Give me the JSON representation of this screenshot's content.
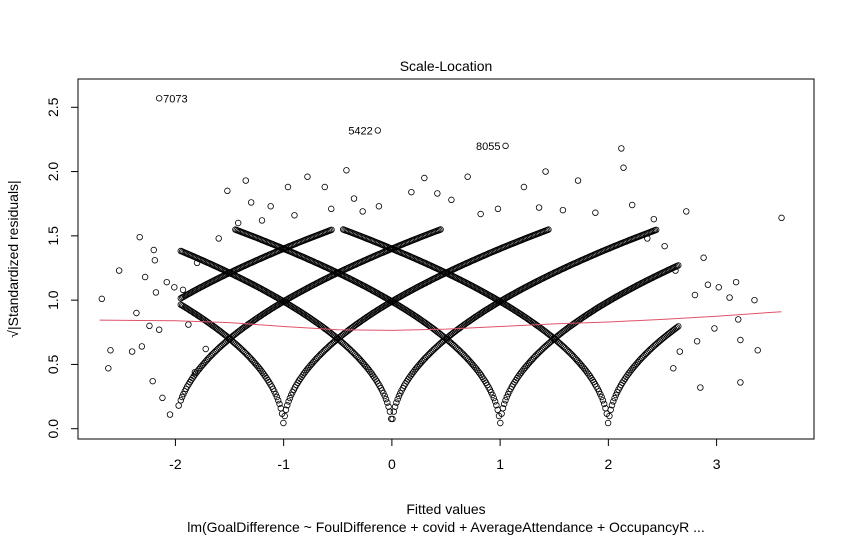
{
  "chart_data": {
    "type": "scatter",
    "title": "Scale-Location",
    "xlabel": "Fitted values",
    "ylabel": "√|Standardized residuals|",
    "subtitle": "lm(GoalDifference ~ FoulDifference + covid + AverageAttendance + OccupancyR ...",
    "xlim": [
      -2.9,
      3.9
    ],
    "ylim": [
      -0.08,
      2.72
    ],
    "xticks": [
      -2,
      -1,
      0,
      1,
      2,
      3
    ],
    "yticks": [
      0.0,
      0.5,
      1.0,
      1.5,
      2.0,
      2.5
    ],
    "xtick_labels": [
      "-2",
      "-1",
      "0",
      "1",
      "2",
      "3"
    ],
    "ytick_labels": [
      "0.0",
      "0.5",
      "1.0",
      "1.5",
      "2.0",
      "2.5"
    ],
    "grid": false,
    "point_color": "#000000",
    "smooth_color": "#DF536B",
    "labeled_points": [
      {
        "label": "7073",
        "x": -2.15,
        "y": 2.57
      },
      {
        "label": "5422",
        "x": -0.13,
        "y": 2.32
      },
      {
        "label": "8055",
        "x": 1.05,
        "y": 2.2
      }
    ],
    "lattice": {
      "residual_levels": [
        -3,
        -2,
        -1,
        0,
        1,
        2
      ],
      "note": "dense curves sqrt(|k - x|) for integer goal differences k"
    },
    "scattered_points": [
      {
        "x": -2.68,
        "y": 1.01
      },
      {
        "x": -2.62,
        "y": 0.47
      },
      {
        "x": -2.6,
        "y": 0.61
      },
      {
        "x": -2.52,
        "y": 1.23
      },
      {
        "x": -2.4,
        "y": 0.6
      },
      {
        "x": -2.36,
        "y": 0.9
      },
      {
        "x": -2.33,
        "y": 1.49
      },
      {
        "x": -2.28,
        "y": 1.18
      },
      {
        "x": -2.21,
        "y": 0.37
      },
      {
        "x": -2.2,
        "y": 1.39
      },
      {
        "x": -2.19,
        "y": 1.31
      },
      {
        "x": -2.18,
        "y": 1.06
      },
      {
        "x": -2.12,
        "y": 0.24
      },
      {
        "x": -2.08,
        "y": 1.14
      },
      {
        "x": -2.05,
        "y": 0.11
      },
      {
        "x": -2.01,
        "y": 1.1
      },
      {
        "x": -1.97,
        "y": 0.18
      },
      {
        "x": -1.93,
        "y": 1.08
      },
      {
        "x": -1.88,
        "y": 0.81
      },
      {
        "x": -1.8,
        "y": 1.29
      },
      {
        "x": -1.6,
        "y": 1.48
      },
      {
        "x": -1.52,
        "y": 1.85
      },
      {
        "x": -1.42,
        "y": 1.6
      },
      {
        "x": -1.35,
        "y": 1.93
      },
      {
        "x": -1.3,
        "y": 1.76
      },
      {
        "x": -1.2,
        "y": 1.62
      },
      {
        "x": -1.12,
        "y": 1.73
      },
      {
        "x": -0.96,
        "y": 1.88
      },
      {
        "x": -0.9,
        "y": 1.66
      },
      {
        "x": -0.78,
        "y": 1.96
      },
      {
        "x": -0.62,
        "y": 1.88
      },
      {
        "x": -0.56,
        "y": 1.71
      },
      {
        "x": -0.42,
        "y": 2.01
      },
      {
        "x": -0.35,
        "y": 1.79
      },
      {
        "x": -0.27,
        "y": 1.69
      },
      {
        "x": -0.12,
        "y": 1.73
      },
      {
        "x": 0.18,
        "y": 1.84
      },
      {
        "x": 0.3,
        "y": 1.95
      },
      {
        "x": 0.42,
        "y": 1.83
      },
      {
        "x": 0.55,
        "y": 1.78
      },
      {
        "x": 0.7,
        "y": 1.96
      },
      {
        "x": 0.82,
        "y": 1.67
      },
      {
        "x": 0.98,
        "y": 1.71
      },
      {
        "x": 1.22,
        "y": 1.88
      },
      {
        "x": 1.36,
        "y": 1.72
      },
      {
        "x": 1.42,
        "y": 2.0
      },
      {
        "x": 1.58,
        "y": 1.7
      },
      {
        "x": 1.72,
        "y": 1.93
      },
      {
        "x": 1.88,
        "y": 1.68
      },
      {
        "x": 2.12,
        "y": 2.18
      },
      {
        "x": 2.14,
        "y": 2.03
      },
      {
        "x": 2.22,
        "y": 1.74
      },
      {
        "x": 2.36,
        "y": 1.48
      },
      {
        "x": 2.42,
        "y": 1.63
      },
      {
        "x": 2.52,
        "y": 1.42
      },
      {
        "x": 2.62,
        "y": 1.23
      },
      {
        "x": 2.8,
        "y": 1.04
      },
      {
        "x": 2.82,
        "y": 0.68
      },
      {
        "x": 2.85,
        "y": 0.32
      },
      {
        "x": 2.98,
        "y": 0.78
      },
      {
        "x": 3.02,
        "y": 1.1
      },
      {
        "x": 2.72,
        "y": 1.69
      },
      {
        "x": 3.18,
        "y": 1.14
      },
      {
        "x": 3.2,
        "y": 0.85
      },
      {
        "x": 3.22,
        "y": 0.69
      },
      {
        "x": 3.22,
        "y": 0.36
      },
      {
        "x": 3.35,
        "y": 1.0
      },
      {
        "x": 3.38,
        "y": 0.61
      },
      {
        "x": 3.6,
        "y": 1.64
      },
      {
        "x": 2.88,
        "y": 1.33
      },
      {
        "x": 2.92,
        "y": 1.12
      },
      {
        "x": -1.72,
        "y": 0.62
      },
      {
        "x": -1.82,
        "y": 0.44
      },
      {
        "x": -2.24,
        "y": 0.8
      },
      {
        "x": -2.31,
        "y": 0.64
      },
      {
        "x": -2.15,
        "y": 0.77
      },
      {
        "x": 2.6,
        "y": 0.47
      },
      {
        "x": 2.66,
        "y": 0.6
      },
      {
        "x": 3.12,
        "y": 1.02
      }
    ],
    "smooth_line": {
      "x": [
        -2.7,
        -2.0,
        -1.5,
        -1.0,
        -0.5,
        0.0,
        0.5,
        1.0,
        1.5,
        2.0,
        2.5,
        3.0,
        3.6
      ],
      "y": [
        0.845,
        0.84,
        0.825,
        0.795,
        0.77,
        0.765,
        0.775,
        0.795,
        0.815,
        0.83,
        0.85,
        0.875,
        0.91
      ]
    }
  }
}
